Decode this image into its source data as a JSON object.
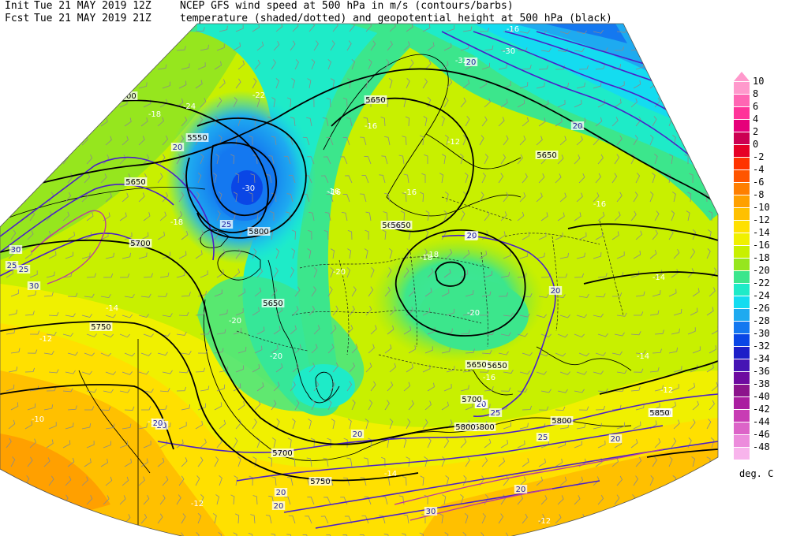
{
  "header": {
    "init_label": "Init",
    "init_datetime": "Tue 21 MAY 2019 12Z",
    "fcst_label": "Fcst",
    "fcst_datetime": "Tue 21 MAY 2019 21Z",
    "line1_desc": "NCEP GFS wind speed at 500 hPa in m/s (contours/barbs)",
    "line2_desc": "temperature (shaded/dotted) and geopotential height at 500 hPa (black)"
  },
  "legend": {
    "unit": "deg. C",
    "levels": [
      {
        "value": "10",
        "color": "#ff99cc"
      },
      {
        "value": "8",
        "color": "#ff66b3"
      },
      {
        "value": "6",
        "color": "#ff3399"
      },
      {
        "value": "4",
        "color": "#e6007a"
      },
      {
        "value": "2",
        "color": "#cc0052"
      },
      {
        "value": "0",
        "color": "#e60026"
      },
      {
        "value": "-2",
        "color": "#ff3300"
      },
      {
        "value": "-4",
        "color": "#ff5500"
      },
      {
        "value": "-6",
        "color": "#ff7f00"
      },
      {
        "value": "-8",
        "color": "#ffa000"
      },
      {
        "value": "-10",
        "color": "#ffc000"
      },
      {
        "value": "-12",
        "color": "#ffe000"
      },
      {
        "value": "-14",
        "color": "#f0f000"
      },
      {
        "value": "-16",
        "color": "#c8f000"
      },
      {
        "value": "-18",
        "color": "#96e61e"
      },
      {
        "value": "-20",
        "color": "#3ce68c"
      },
      {
        "value": "-22",
        "color": "#1eebc8"
      },
      {
        "value": "-24",
        "color": "#14dcf0"
      },
      {
        "value": "-26",
        "color": "#1eaaf0"
      },
      {
        "value": "-28",
        "color": "#1478f0"
      },
      {
        "value": "-30",
        "color": "#0a46e6"
      },
      {
        "value": "-32",
        "color": "#1e1ec8"
      },
      {
        "value": "-34",
        "color": "#4614b4"
      },
      {
        "value": "-36",
        "color": "#6e0aa0"
      },
      {
        "value": "-38",
        "color": "#8c148c"
      },
      {
        "value": "-40",
        "color": "#aa1ea0"
      },
      {
        "value": "-42",
        "color": "#c83cb4"
      },
      {
        "value": "-44",
        "color": "#dc64c8"
      },
      {
        "value": "-46",
        "color": "#ec8cdc"
      },
      {
        "value": "-48",
        "color": "#f8b4ec"
      }
    ]
  },
  "map": {
    "height_labels": [
      "5600",
      "5550",
      "5650",
      "5800",
      "5700",
      "5650",
      "5750",
      "5650",
      "5850",
      "5650",
      "5700",
      "5650",
      "5650",
      "5850",
      "5800",
      "5700",
      "5750",
      "5800",
      "5800",
      "5650",
      "5650",
      "5850"
    ],
    "wind_labels": [
      "20",
      "25",
      "30",
      "25",
      "20",
      "20",
      "20",
      "25",
      "20",
      "30",
      "20",
      "25",
      "20",
      "20",
      "20",
      "20",
      "20",
      "25",
      "30",
      "20",
      "25",
      "20",
      "20"
    ],
    "temp_labels": [
      "-24",
      "-18",
      "-22",
      "-30",
      "-16",
      "-12",
      "-16",
      "-16",
      "-18",
      "-20",
      "-14",
      "-18",
      "-18",
      "-20",
      "-20",
      "-20",
      "-16",
      "-14",
      "-12",
      "-10",
      "-12",
      "-14",
      "-12",
      "-16",
      "-14",
      "-12",
      "-16",
      "-18",
      "-16",
      "-32",
      "-30",
      "-12"
    ]
  }
}
